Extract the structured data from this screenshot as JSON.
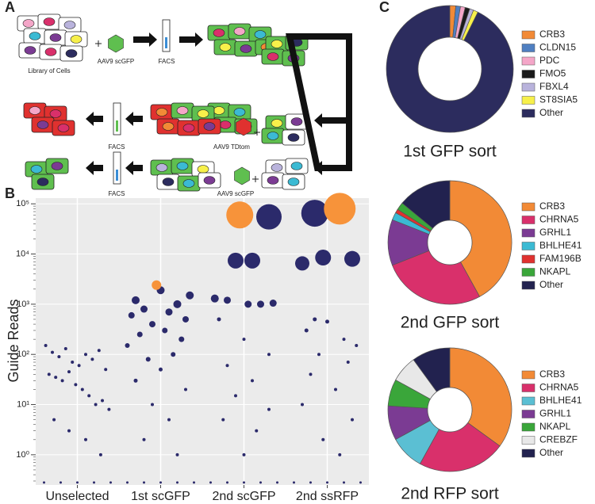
{
  "panel_labels": [
    "A",
    "B",
    "C"
  ],
  "diagram": {
    "labels": [
      "Library of Cells",
      "AAV9 scGFP",
      "FACS",
      "FACS",
      "AAV9 TDtom",
      "FACS",
      "AAV9 scGFP"
    ]
  },
  "chart_data": [
    {
      "type": "scatter",
      "ylabel": "Guide Reads",
      "log_y": true,
      "grid": true,
      "background": "#ebebeb",
      "xlim": [
        0.5,
        4.5
      ],
      "xticks": [
        {
          "value": 1,
          "label": "Unselected"
        },
        {
          "value": 2,
          "label": "1st scGFP"
        },
        {
          "value": 3,
          "label": "2nd scGFP"
        },
        {
          "value": 4,
          "label": "2nd ssRFP"
        }
      ],
      "ylim": [
        0.25,
        130000
      ],
      "yticks": [
        {
          "value": 1,
          "label": "10⁰"
        },
        {
          "value": 10,
          "label": "10¹"
        },
        {
          "value": 100,
          "label": "10²"
        },
        {
          "value": 1000,
          "label": "10³"
        },
        {
          "value": 10000,
          "label": "10⁴"
        },
        {
          "value": 100000,
          "label": "10⁵"
        }
      ],
      "series": [
        {
          "color": "#2b2a6b",
          "x": [
            0.62,
            0.7,
            0.78,
            0.86,
            0.94,
            1.02,
            1.1,
            1.18,
            1.26,
            1.34,
            0.66,
            0.74,
            0.82,
            0.9,
            0.98,
            1.06,
            1.14,
            1.22,
            1.3,
            1.38,
            0.72,
            0.9,
            1.1,
            1.28,
            0.6,
            0.8,
            1.0,
            1.2,
            1.4,
            2.0,
            2.35,
            1.7,
            2.2,
            1.8,
            2.1,
            1.65,
            2.3,
            1.9,
            2.05,
            1.75,
            2.25,
            1.6,
            2.15,
            1.85,
            2.0,
            1.7,
            2.3,
            1.9,
            2.1,
            1.8,
            2.2,
            1.6,
            1.8,
            2.0,
            2.2,
            2.4,
            3.3,
            2.9,
            3.1,
            2.65,
            2.8,
            3.05,
            3.2,
            3.35,
            2.7,
            3.0,
            3.3,
            2.8,
            3.1,
            2.9,
            3.3,
            2.75,
            3.15,
            3.0,
            2.6,
            2.8,
            3.0,
            3.2,
            3.4,
            3.85,
            3.7,
            3.95,
            4.3,
            3.85,
            4.0,
            3.75,
            4.2,
            4.35,
            3.9,
            4.25,
            3.8,
            4.1,
            3.7,
            4.3,
            3.95,
            4.15,
            3.6,
            3.8,
            4.0,
            4.2,
            4.4
          ],
          "values": [
            150,
            110,
            90,
            130,
            70,
            60,
            100,
            80,
            120,
            50,
            40,
            35,
            30,
            45,
            25,
            20,
            15,
            10,
            12,
            8,
            5,
            3,
            2,
            1,
            0.28,
            0.28,
            0.28,
            0.28,
            0.28,
            1900,
            1500,
            1200,
            1000,
            800,
            700,
            600,
            500,
            400,
            300,
            250,
            200,
            150,
            100,
            80,
            50,
            30,
            20,
            10,
            5,
            2,
            1,
            0.28,
            0.28,
            0.28,
            0.28,
            0.28,
            55000,
            7400,
            7400,
            1300,
            1200,
            1000,
            1000,
            1050,
            500,
            200,
            100,
            60,
            30,
            15,
            8,
            5,
            3,
            1,
            0.28,
            0.28,
            0.28,
            0.28,
            0.28,
            65000,
            6500,
            8500,
            8000,
            500,
            450,
            300,
            200,
            150,
            100,
            70,
            40,
            20,
            10,
            5,
            2,
            1,
            0.28,
            0.28,
            0.28,
            0.28,
            0.28
          ],
          "sizes": [
            2,
            2,
            2,
            2,
            2,
            2,
            2,
            2,
            2,
            2,
            2,
            2,
            2,
            2,
            2,
            2,
            2,
            2,
            2,
            2,
            2,
            2,
            2,
            2,
            1.5,
            1.5,
            1.5,
            1.5,
            1.5,
            5,
            5,
            5,
            5,
            4.5,
            4.5,
            4,
            4,
            4,
            3.5,
            3.5,
            3.5,
            3,
            3,
            3,
            2.5,
            2.5,
            2,
            2,
            2,
            2,
            2,
            1.5,
            1.5,
            1.5,
            1.5,
            1.5,
            16,
            10,
            10,
            5,
            4.5,
            4.5,
            4.5,
            4.5,
            2.5,
            2,
            2,
            2,
            2,
            2,
            2,
            2,
            2,
            2,
            1.5,
            1.5,
            1.5,
            1.5,
            1.5,
            17,
            9,
            10,
            10,
            2.5,
            2.5,
            2.5,
            2,
            2,
            2,
            2,
            2,
            2,
            2,
            2,
            2,
            2,
            1.5,
            1.5,
            1.5,
            1.5,
            1.5
          ]
        },
        {
          "color": "#f7933a",
          "x": [
            1.95,
            2.95,
            4.15
          ],
          "values": [
            2400,
            60000,
            80000
          ],
          "sizes": [
            6,
            17,
            20
          ]
        }
      ]
    },
    {
      "type": "pie",
      "title": "1st GFP sort",
      "categories": [
        "CRB3",
        "CLDN15",
        "PDC",
        "FMO5",
        "FBXL4",
        "ST8SIA5",
        "Other"
      ],
      "values": [
        1.5,
        1.2,
        1.2,
        1.2,
        1,
        1.2,
        92.7
      ],
      "colors": [
        "#f28a36",
        "#4f7fc1",
        "#f4a6c8",
        "#1a1a1a",
        "#b9b3dc",
        "#f7f04a",
        "#2c2c5e"
      ]
    },
    {
      "type": "pie",
      "title": "2nd GFP sort",
      "categories": [
        "CRB3",
        "CHRNA5",
        "GRHL1",
        "BHLHE41",
        "FAM196B",
        "NKAPL",
        "Other"
      ],
      "values": [
        42,
        27,
        12,
        2,
        1,
        2,
        14
      ],
      "colors": [
        "#f28a36",
        "#d9306b",
        "#7b3b93",
        "#3bbad3",
        "#e0312f",
        "#3aa63a",
        "#22224f"
      ]
    },
    {
      "type": "pie",
      "title": "2nd RFP sort",
      "categories": [
        "CRB3",
        "CHRNA5",
        "BHLHE41",
        "GRHL1",
        "NKAPL",
        "CREBZF",
        "Other"
      ],
      "values": [
        35,
        23,
        9,
        9,
        7,
        7,
        10
      ],
      "colors": [
        "#f28a36",
        "#d9306b",
        "#5bbfd3",
        "#7b3b93",
        "#3aa63a",
        "#e8e8e8",
        "#22224f"
      ]
    }
  ]
}
